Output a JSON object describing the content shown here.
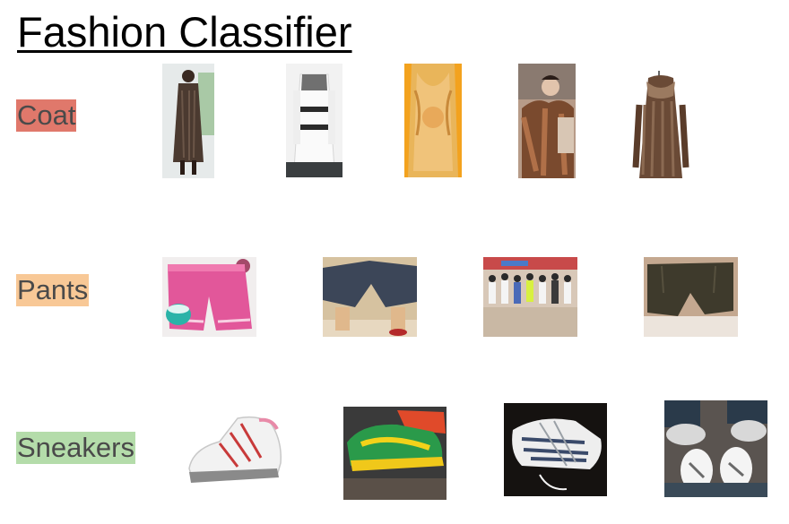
{
  "title": "Fashion Classifier",
  "categories": [
    {
      "label": "Coat",
      "color": "#e0786b",
      "image_count": 5
    },
    {
      "label": "Pants",
      "color": "#f8c896",
      "image_count": 4
    },
    {
      "label": "Sneakers",
      "color": "#b4dcaa",
      "image_count": 4
    }
  ]
}
